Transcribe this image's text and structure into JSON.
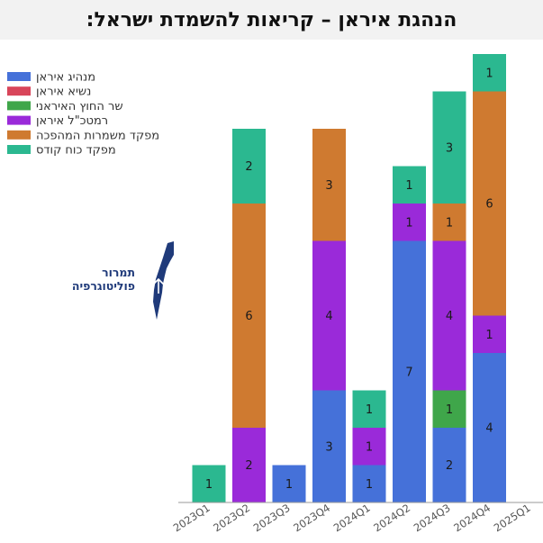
{
  "title": "הנהגת איראן – קריאות להשמדת ישראל:",
  "logo": {
    "line1": "תמרור",
    "line2": "פוליטוגרפיה"
  },
  "chart_data": {
    "type": "bar",
    "stacked": true,
    "title": "הנהגת איראן – קריאות להשמדת ישראל:",
    "categories": [
      "2023Q1",
      "2023Q2",
      "2023Q3",
      "2023Q4",
      "2024Q1",
      "2024Q2",
      "2024Q3",
      "2024Q4",
      "2025Q1"
    ],
    "series": [
      {
        "name": "מנהיג איראן",
        "color": "#4571d9",
        "values": [
          0,
          0,
          1,
          3,
          1,
          7,
          2,
          4,
          0
        ]
      },
      {
        "name": "נשיא איראן",
        "color": "#d8455a",
        "values": [
          0,
          0,
          0,
          0,
          0,
          0,
          0,
          0,
          0
        ]
      },
      {
        "name": "שר החוץ האיראני",
        "color": "#3fa64a",
        "values": [
          0,
          0,
          0,
          0,
          0,
          0,
          1,
          0,
          0
        ]
      },
      {
        "name": "רמטכ\"ל איראן",
        "color": "#9a2ad9",
        "values": [
          0,
          2,
          0,
          4,
          1,
          1,
          4,
          1,
          0
        ]
      },
      {
        "name": "מפקד משמרות המהפכה",
        "color": "#cf7a30",
        "values": [
          0,
          6,
          0,
          3,
          0,
          0,
          1,
          6,
          0
        ]
      },
      {
        "name": "מפקד כוח קודס",
        "color": "#2bb890",
        "values": [
          1,
          2,
          0,
          0,
          1,
          1,
          3,
          1,
          0
        ]
      }
    ],
    "ylim": [
      0,
      12
    ],
    "grid": false,
    "legend": "top-left"
  }
}
